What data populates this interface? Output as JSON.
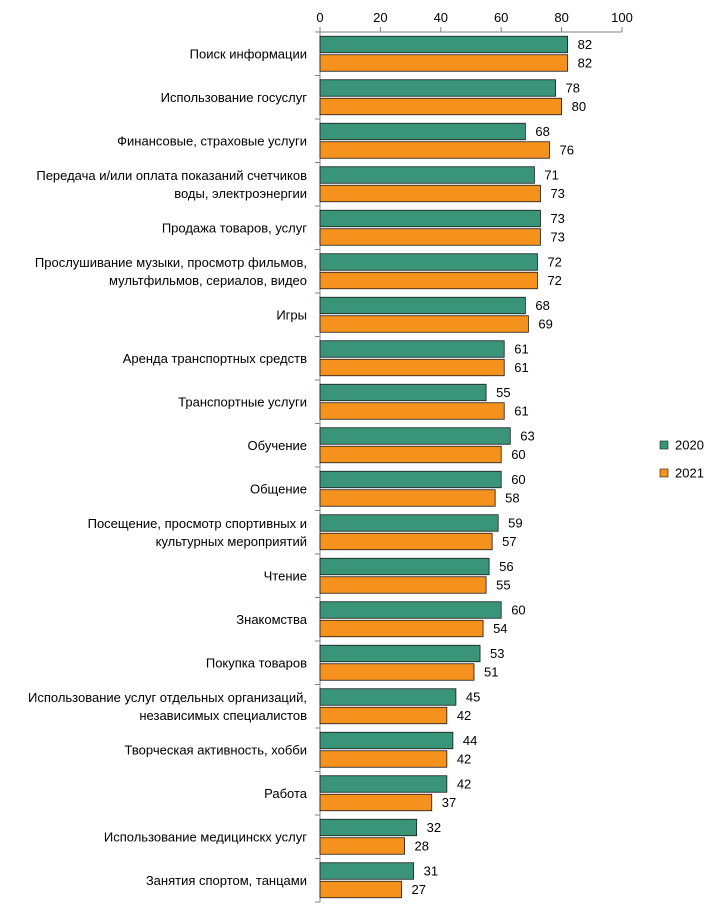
{
  "chart_data": {
    "type": "bar",
    "orientation": "horizontal",
    "xlim": [
      0,
      100
    ],
    "xticks": [
      "0",
      "20",
      "40",
      "60",
      "80",
      "100"
    ],
    "tick_values": [
      0,
      20,
      40,
      60,
      80,
      100
    ],
    "grid": false,
    "legend_position": "right",
    "categories": [
      [
        "Поиск информации"
      ],
      [
        "Использование госуслуг"
      ],
      [
        "Финансовые, страховые услуги"
      ],
      [
        "Передача и/или оплата показаний счетчиков",
        "воды, электроэнергии"
      ],
      [
        "Продажа товаров, услуг"
      ],
      [
        "Прослушивание музыки, просмотр фильмов,",
        "мультфильмов, сериалов, видео"
      ],
      [
        "Игры"
      ],
      [
        "Аренда транспортных средств"
      ],
      [
        "Транспортные услуги"
      ],
      [
        "Обучение"
      ],
      [
        "Общение"
      ],
      [
        "Посещение, просмотр спортивных и",
        "культурных мероприятий"
      ],
      [
        "Чтение"
      ],
      [
        "Знакомства"
      ],
      [
        "Покупка товаров"
      ],
      [
        "Использование услуг отдельных организаций,",
        "независимых специалистов"
      ],
      [
        "Творческая активность, хобби"
      ],
      [
        "Работа"
      ],
      [
        "Использование медицинскх услуг"
      ],
      [
        "Занятия спортом, танцами"
      ]
    ],
    "series": [
      {
        "name": "2020",
        "color": "#3a9478",
        "values": [
          82,
          78,
          68,
          71,
          73,
          72,
          68,
          61,
          55,
          63,
          60,
          59,
          56,
          60,
          53,
          45,
          44,
          42,
          32,
          31
        ]
      },
      {
        "name": "2021",
        "color": "#f5921e",
        "values": [
          82,
          80,
          76,
          73,
          73,
          72,
          69,
          61,
          61,
          60,
          58,
          57,
          55,
          54,
          51,
          42,
          42,
          37,
          28,
          27
        ]
      }
    ]
  }
}
